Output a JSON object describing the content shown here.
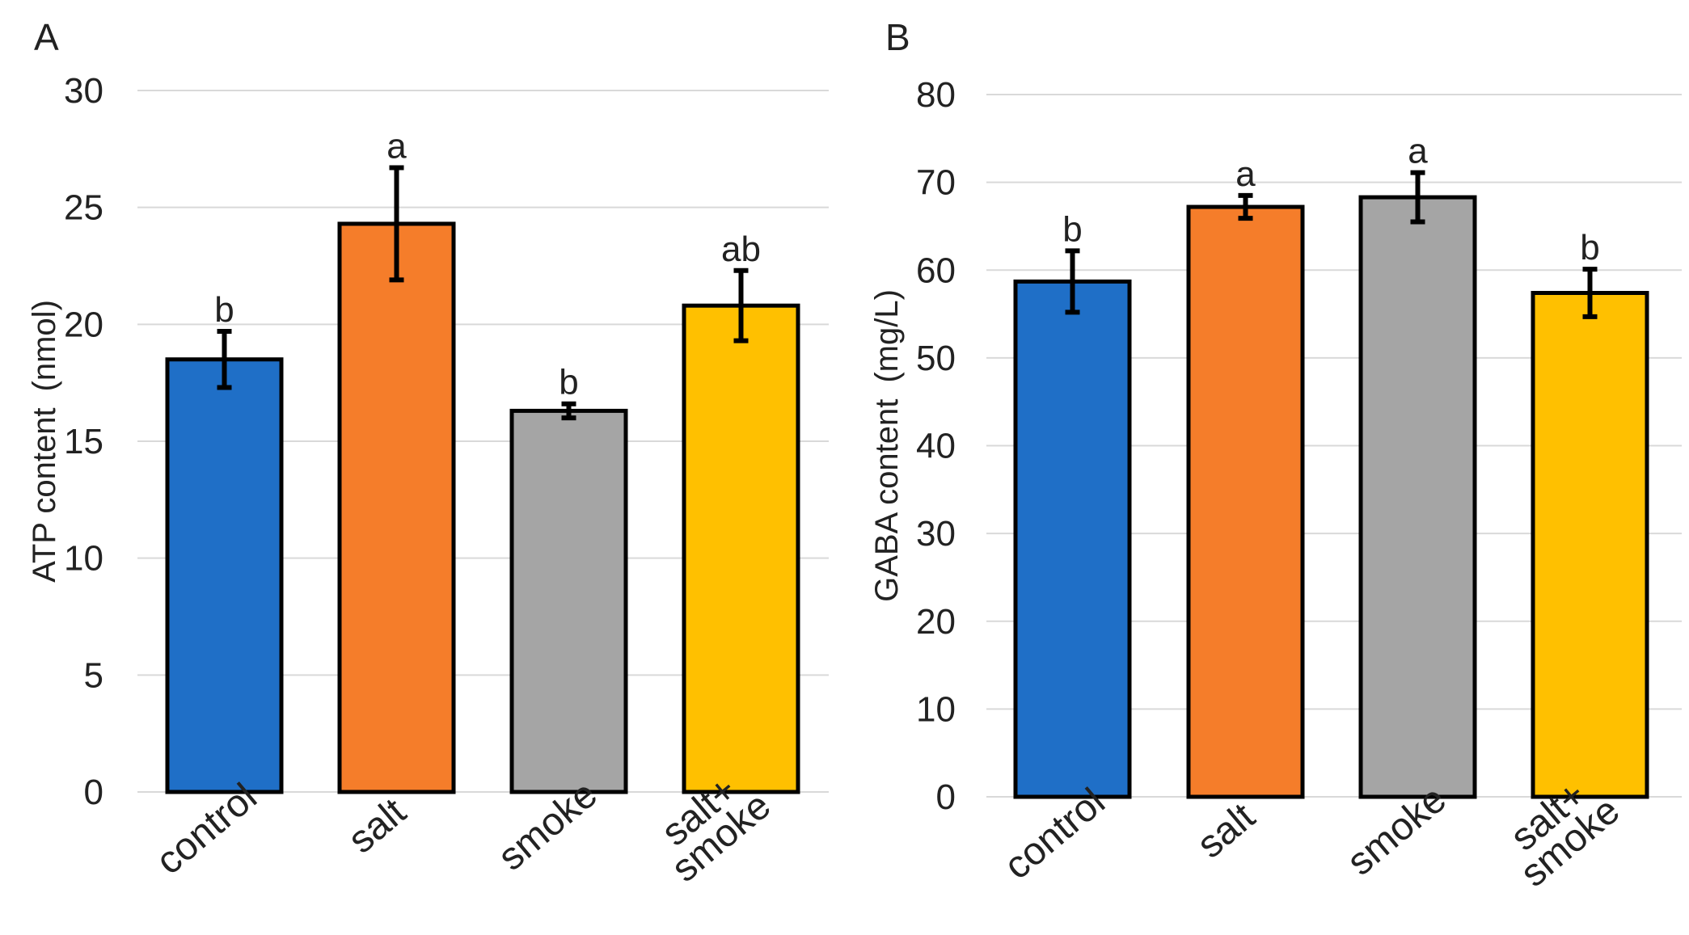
{
  "chart_data": [
    {
      "type": "bar",
      "panel_label": "A",
      "title": "",
      "xlabel": "",
      "ylabel": "ATP content (nmol)",
      "ylim": [
        0,
        30
      ],
      "yticks": [
        0,
        5,
        10,
        15,
        20,
        25,
        30
      ],
      "grid": true,
      "categories": [
        [
          "control"
        ],
        [
          "salt"
        ],
        [
          "smoke"
        ],
        [
          "salt+",
          "smoke"
        ]
      ],
      "values": [
        18.5,
        24.3,
        16.3,
        20.8
      ],
      "errors": [
        1.2,
        2.4,
        0.3,
        1.5
      ],
      "significance": [
        "b",
        "a",
        "b",
        "ab"
      ],
      "colors": [
        "#1f6fc7",
        "#f57d2a",
        "#a5a5a5",
        "#ffc000"
      ]
    },
    {
      "type": "bar",
      "panel_label": "B",
      "title": "",
      "xlabel": "",
      "ylabel": "GABA content (mg/L)",
      "ylim": [
        0,
        80
      ],
      "yticks": [
        0,
        10,
        20,
        30,
        40,
        50,
        60,
        70,
        80
      ],
      "grid": true,
      "categories": [
        [
          "control"
        ],
        [
          "salt"
        ],
        [
          "smoke"
        ],
        [
          "salt+",
          "smoke"
        ]
      ],
      "values": [
        58.7,
        67.2,
        68.3,
        57.4
      ],
      "errors": [
        3.5,
        1.3,
        2.8,
        2.7
      ],
      "significance": [
        "b",
        "a",
        "a",
        "b"
      ],
      "colors": [
        "#1f6fc7",
        "#f57d2a",
        "#a5a5a5",
        "#ffc000"
      ]
    }
  ]
}
